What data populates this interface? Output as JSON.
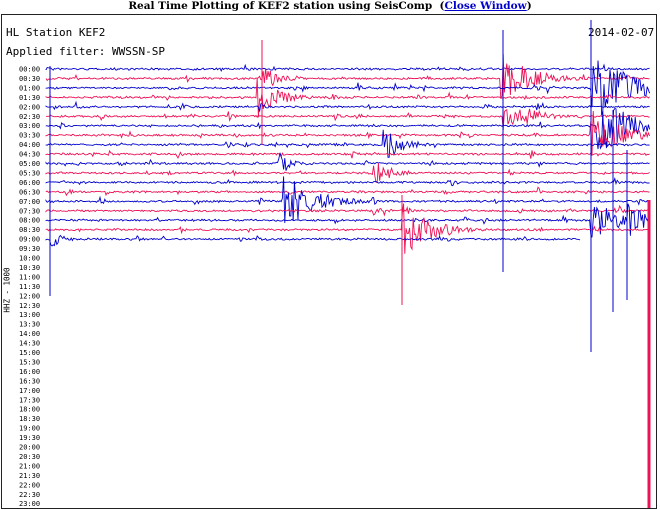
{
  "header": {
    "title": "Real Time Plotting of KEF2 station using SeisComp",
    "close_link": "Close Window"
  },
  "station_label": "HL Station KEF2",
  "date": "2014-02-07",
  "filter_label": "Applied filter: WWSSN-SP",
  "channel_label": "HHZ - 1000",
  "colors": {
    "trace_odd": "#0000cc",
    "trace_even": "#ee1155"
  },
  "time_labels": [
    "00:00",
    "00:30",
    "01:00",
    "01:30",
    "02:00",
    "02:30",
    "03:00",
    "03:30",
    "04:00",
    "04:30",
    "05:00",
    "05:30",
    "06:00",
    "06:30",
    "07:00",
    "07:30",
    "08:00",
    "08:30",
    "09:00",
    "09:30",
    "10:00",
    "10:30",
    "11:00",
    "11:30",
    "12:00",
    "12:30",
    "13:00",
    "13:30",
    "14:00",
    "14:30",
    "15:00",
    "15:30",
    "16:00",
    "16:30",
    "17:00",
    "17:30",
    "18:00",
    "18:30",
    "19:00",
    "19:30",
    "20:00",
    "20:30",
    "21:00",
    "21:30",
    "22:00",
    "22:30",
    "23:00"
  ],
  "recorded_rows": 19
}
